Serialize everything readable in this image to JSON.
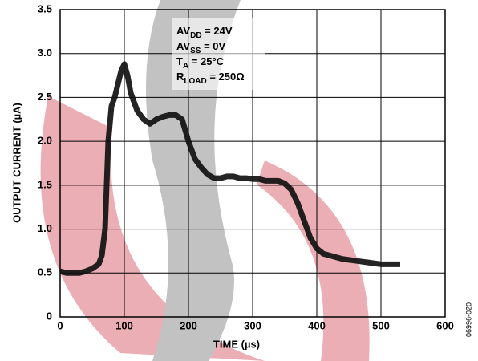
{
  "chart_data": {
    "type": "line",
    "xlabel": "TIME (µs)",
    "ylabel": "OUTPUT CURRENT (µA)",
    "annotations": [
      {
        "main": "AV",
        "sub": "DD",
        "rest": " = 24V"
      },
      {
        "main": "AV",
        "sub": "SS",
        "rest": " = 0V"
      },
      {
        "main": "T",
        "sub": "A",
        "rest": " = 25°C"
      },
      {
        "main": "R",
        "sub": "LOAD",
        "rest": " = 250Ω"
      }
    ],
    "figure_id": "06996-020",
    "x": [
      0,
      10,
      20,
      30,
      40,
      50,
      60,
      65,
      70,
      75,
      80,
      85,
      90,
      95,
      100,
      105,
      110,
      120,
      130,
      140,
      150,
      160,
      170,
      180,
      190,
      200,
      210,
      220,
      230,
      240,
      250,
      260,
      270,
      280,
      290,
      300,
      310,
      320,
      330,
      340,
      350,
      360,
      370,
      380,
      390,
      400,
      410,
      420,
      430,
      440,
      450,
      460,
      470,
      480,
      490,
      500,
      510,
      520,
      530
    ],
    "series": [
      {
        "color": "#111111",
        "values": [
          0.52,
          0.5,
          0.5,
          0.5,
          0.52,
          0.55,
          0.6,
          0.7,
          1.0,
          2.0,
          2.4,
          2.5,
          2.65,
          2.8,
          2.88,
          2.75,
          2.55,
          2.35,
          2.25,
          2.2,
          2.25,
          2.28,
          2.3,
          2.3,
          2.25,
          2.0,
          1.8,
          1.7,
          1.62,
          1.58,
          1.58,
          1.6,
          1.6,
          1.58,
          1.58,
          1.57,
          1.57,
          1.55,
          1.55,
          1.55,
          1.52,
          1.45,
          1.3,
          1.1,
          0.9,
          0.78,
          0.72,
          0.7,
          0.68,
          0.66,
          0.65,
          0.64,
          0.63,
          0.62,
          0.61,
          0.6,
          0.6,
          0.6,
          0.6
        ]
      }
    ],
    "xlim": [
      0,
      600
    ],
    "xticks": [
      0,
      100,
      200,
      300,
      400,
      500,
      600
    ],
    "ylim": [
      0,
      3.5
    ],
    "yticks": [
      0,
      0.5,
      {
        "value": 1,
        "label": "1.0"
      },
      1.5,
      {
        "value": 2,
        "label": "2.0"
      },
      2.5,
      {
        "value": 3,
        "label": "3.0"
      },
      3.5
    ],
    "grid": true
  }
}
